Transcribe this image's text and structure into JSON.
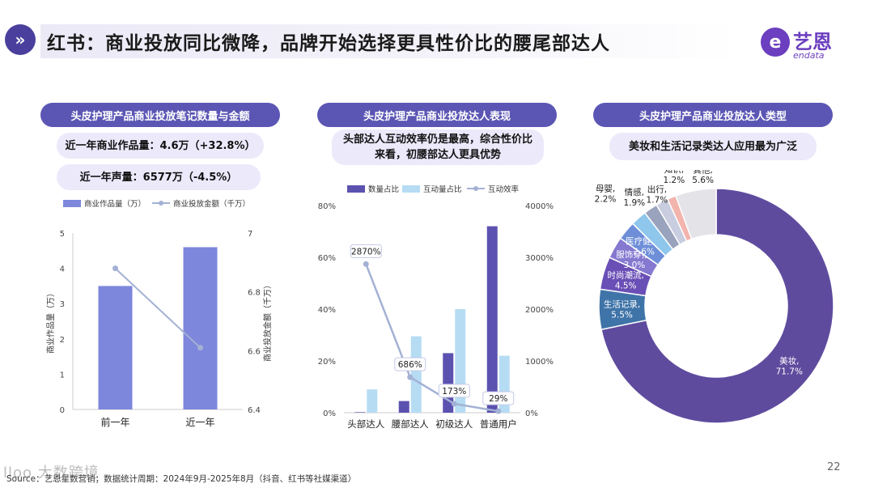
{
  "header": {
    "title": "红书：商业投放同比微降，品牌开始选择更具性价比的腰尾部达人",
    "icon": "double-chevron-right-icon"
  },
  "logo": {
    "cn": "艺恩",
    "en": "endata",
    "mark": "e"
  },
  "panel1": {
    "heading": "头皮护理产品商业投放笔记数量与金额",
    "stat1": "近一年商业作品量：4.6万（+32.8%）",
    "stat2": "近一年声量：6577万（-4.5%）"
  },
  "panel2": {
    "heading": "头皮护理产品商业投放达人表现",
    "note": "头部达人互动效率仍是最高，综合性价比来看，初腰部达人更具优势"
  },
  "panel3": {
    "heading": "头皮护理产品商业投放达人类型",
    "note": "美妆和生活记录类达人应用最为广泛"
  },
  "chart_data": [
    {
      "type": "bar",
      "categories": [
        "前一年",
        "近一年"
      ],
      "series": [
        {
          "name": "商业作品量（万）",
          "kind": "bar",
          "axis": "left",
          "color": "#7d87dc",
          "values": [
            3.5,
            4.6
          ]
        },
        {
          "name": "商业投放金额（千万）",
          "kind": "line",
          "axis": "right",
          "color": "#a3b1d4",
          "values": [
            6.88,
            6.61
          ]
        }
      ],
      "ylabel": "商业作品量（万）",
      "y2label": "商业投放金额（千万）",
      "ylim": [
        0,
        5
      ],
      "yticks": [
        "0",
        "1",
        "2",
        "3",
        "4",
        "5"
      ],
      "y2lim": [
        6.4,
        7
      ],
      "y2ticks": [
        "6.4",
        "6.6",
        "6.8",
        "7"
      ],
      "legend": "top"
    },
    {
      "type": "bar",
      "categories": [
        "头部达人",
        "腰部达人",
        "初级达人",
        "普通用户"
      ],
      "series": [
        {
          "name": "数量占比",
          "kind": "bar",
          "axis": "left",
          "color": "#5b52b0",
          "values": [
            0.2,
            4.5,
            23,
            72
          ]
        },
        {
          "name": "互动量占比",
          "kind": "bar",
          "axis": "left",
          "color": "#b6dcf3",
          "values": [
            9,
            29.5,
            40,
            22
          ]
        },
        {
          "name": "互动效率",
          "kind": "line",
          "axis": "right",
          "color": "#a3b1d4",
          "values": [
            2870,
            686,
            173,
            29
          ],
          "labels": [
            "2870%",
            "686%",
            "173%",
            "29%"
          ]
        }
      ],
      "ylim": [
        0,
        80
      ],
      "yticks": [
        "0%",
        "20%",
        "40%",
        "60%",
        "80%"
      ],
      "y2lim": [
        0,
        4000
      ],
      "y2ticks": [
        "0%",
        "1000%",
        "2000%",
        "3000%",
        "4000%"
      ],
      "legend": "top"
    },
    {
      "type": "pie",
      "donut": true,
      "slices": [
        {
          "label": "美妆,",
          "value_label": "71.7%",
          "value": 71.7,
          "color": "#5f4b9e"
        },
        {
          "label": "生活记录,",
          "value_label": "5.5%",
          "value": 5.5,
          "color": "#3f74a8"
        },
        {
          "label": "时尚潮流,",
          "value_label": "4.5%",
          "value": 4.5,
          "color": "#6a4fb6"
        },
        {
          "label": "服饰穿搭,",
          "value_label": "3.0%",
          "value": 3.0,
          "color": "#8478d0"
        },
        {
          "label": "医疗健康,",
          "value_label": "2.6%",
          "value": 2.6,
          "color": "#6e8fd8"
        },
        {
          "label": "母婴,",
          "value_label": "2.2%",
          "value": 2.2,
          "color": "#8ec6ec"
        },
        {
          "label": "情感,",
          "value_label": "1.9%",
          "value": 1.9,
          "color": "#9aa3bd"
        },
        {
          "label": "出行,",
          "value_label": "1.7%",
          "value": 1.7,
          "color": "#c9cde0"
        },
        {
          "label": "知识,",
          "value_label": "1.2%",
          "value": 1.2,
          "color": "#f2b4ad"
        },
        {
          "label": "其他,",
          "value_label": "5.6%",
          "value": 5.6,
          "color": "#e3e3e8"
        }
      ]
    }
  ],
  "footer": {
    "source": "Source：艺恩星数营销；数据统计周期：2024年9月-2025年8月（抖音、红书等社媒渠道）",
    "page": "22",
    "watermark": "lloo 大数跨境"
  }
}
